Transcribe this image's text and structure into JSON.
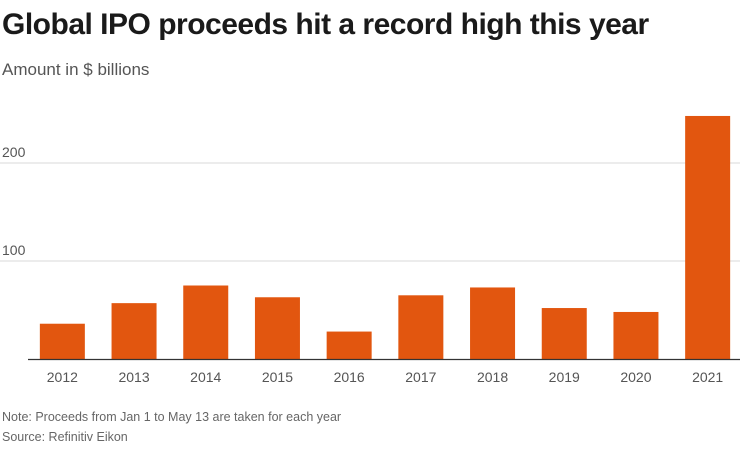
{
  "title": "Global IPO proceeds hit a record high this year",
  "subtitle": "Amount in $ billions",
  "note": "Note: Proceeds from Jan 1 to May 13 are taken for each year",
  "source": "Source: Refinitiv Eikon",
  "colors": {
    "bar": "#e2560f",
    "grid": "#d9d9d9",
    "axis": "#333333",
    "tick_text": "#555555"
  },
  "chart_data": {
    "type": "bar",
    "title": "Global IPO proceeds hit a record high this year",
    "ylabel": "Amount in $ billions",
    "xlabel": "",
    "categories": [
      "2012",
      "2013",
      "2014",
      "2015",
      "2016",
      "2017",
      "2018",
      "2019",
      "2020",
      "2021"
    ],
    "values": [
      36,
      57,
      75,
      63,
      28,
      65,
      73,
      52,
      48,
      248
    ],
    "ylim": [
      0,
      250
    ],
    "yticks": [
      100,
      200
    ],
    "grid": true,
    "legend": "none"
  }
}
